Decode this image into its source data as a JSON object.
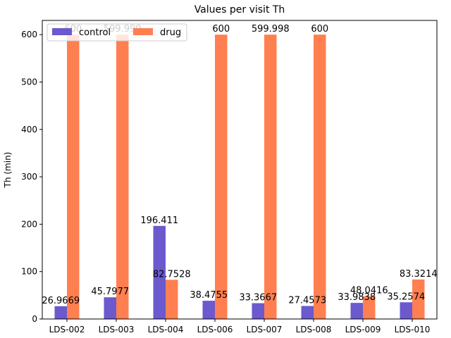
{
  "chart_data": {
    "type": "bar",
    "title": "Values per visit Th",
    "xlabel": "",
    "ylabel": "Th (min)",
    "ylim": [
      0,
      630
    ],
    "yticks": [
      0,
      100,
      200,
      300,
      400,
      500,
      600
    ],
    "categories": [
      "LDS-002",
      "LDS-003",
      "LDS-004",
      "LDS-006",
      "LDS-007",
      "LDS-008",
      "LDS-009",
      "LDS-010"
    ],
    "series": [
      {
        "name": "control",
        "color": "#6a5acd",
        "values": [
          26.9669,
          45.7977,
          196.411,
          38.4755,
          33.3667,
          27.4573,
          33.9838,
          35.2574
        ],
        "labels": [
          "26.9669",
          "45.7977",
          "196.411",
          "38.4755",
          "33.3667",
          "27.4573",
          "33.9838",
          "35.2574"
        ]
      },
      {
        "name": "drug",
        "color": "#ff7f50",
        "values": [
          600,
          599.999,
          82.7528,
          600,
          599.998,
          600,
          48.0416,
          83.3214
        ],
        "labels": [
          "600",
          "599.999",
          "82.7528",
          "600",
          "599.998",
          "600",
          "48.0416",
          "83.3214"
        ]
      }
    ],
    "legend": "top-left",
    "grid": false
  }
}
